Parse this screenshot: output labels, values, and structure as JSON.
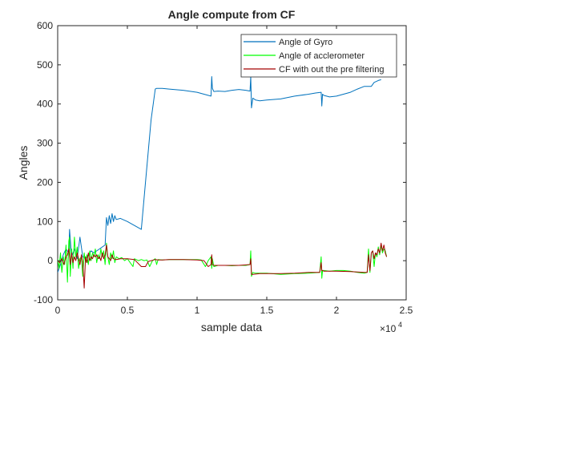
{
  "chart_data": {
    "type": "line",
    "title": "Angle compute from CF",
    "xlabel": "sample data",
    "ylabel": "Angles",
    "x_exponent_label": "×10",
    "x_exponent_power": "4",
    "xlim": [
      0,
      25000
    ],
    "ylim": [
      -100,
      600
    ],
    "x_ticks": [
      0,
      5000,
      10000,
      15000,
      20000,
      25000
    ],
    "x_tick_labels": [
      "0",
      "0.5",
      "1",
      "1.5",
      "2",
      "2.5"
    ],
    "y_ticks": [
      -100,
      0,
      100,
      200,
      300,
      400,
      500,
      600
    ],
    "y_tick_labels": [
      "-100",
      "0",
      "100",
      "200",
      "300",
      "400",
      "500",
      "600"
    ],
    "grid": false,
    "legend_position": "top-right",
    "series": [
      {
        "name": "Angle of Gyro",
        "color": "#0072bd",
        "x": [
          0,
          200,
          400,
          600,
          800,
          850,
          1000,
          1200,
          1400,
          1600,
          1800,
          2000,
          2200,
          2400,
          2600,
          2800,
          3000,
          3200,
          3400,
          3500,
          3600,
          3700,
          3800,
          3900,
          4000,
          4100,
          4200,
          4500,
          5000,
          5500,
          6000,
          6300,
          6700,
          7000,
          7100,
          7500,
          8000,
          9000,
          10000,
          10500,
          11000,
          11050,
          11100,
          11200,
          11500,
          12000,
          12500,
          13000,
          13500,
          13800,
          13850,
          13900,
          14000,
          14200,
          14500,
          15000,
          16000,
          17000,
          18000,
          18500,
          18900,
          18950,
          19000,
          19100,
          19500,
          20000,
          21000,
          21500,
          22000,
          22500,
          22700,
          23000,
          23200
        ],
        "y": [
          -30,
          -10,
          15,
          30,
          20,
          80,
          10,
          30,
          5,
          60,
          10,
          5,
          15,
          25,
          20,
          25,
          30,
          35,
          40,
          110,
          90,
          115,
          95,
          120,
          100,
          115,
          105,
          108,
          100,
          90,
          80,
          200,
          360,
          438,
          440,
          440,
          438,
          435,
          430,
          425,
          420,
          470,
          440,
          432,
          433,
          432,
          435,
          437,
          435,
          433,
          470,
          390,
          415,
          410,
          408,
          410,
          413,
          420,
          425,
          428,
          430,
          395,
          425,
          422,
          418,
          420,
          430,
          438,
          445,
          445,
          455,
          460,
          462
        ]
      },
      {
        "name": "Angle of acclerometer",
        "color": "#00ff00",
        "x": [
          0,
          100,
          200,
          300,
          400,
          500,
          600,
          700,
          800,
          850,
          900,
          1000,
          1100,
          1200,
          1300,
          1400,
          1500,
          1600,
          1700,
          1800,
          1900,
          2000,
          2100,
          2200,
          2300,
          2400,
          2500,
          2600,
          2700,
          2800,
          2900,
          3000,
          3100,
          3200,
          3300,
          3400,
          3500,
          3600,
          3700,
          3800,
          3900,
          4000,
          4100,
          4200,
          4400,
          4600,
          4800,
          5000,
          5400,
          5500,
          5800,
          6000,
          6200,
          6400,
          6600,
          6800,
          7000,
          7100,
          7200,
          7500,
          8000,
          9000,
          10000,
          10300,
          10600,
          10800,
          11000,
          11050,
          11100,
          11200,
          11500,
          12000,
          12500,
          13000,
          13500,
          13800,
          13850,
          13900,
          14000,
          14200,
          15000,
          16000,
          17000,
          18000,
          18800,
          18900,
          18950,
          19000,
          19100,
          19500,
          20000,
          20500,
          21000,
          21500,
          22000,
          22200,
          22300,
          22400,
          22500,
          22600,
          22700,
          22800,
          22900,
          23000,
          23100,
          23200,
          23300,
          23400,
          23500,
          23600
        ],
        "y": [
          5,
          -20,
          20,
          -30,
          10,
          -10,
          40,
          -55,
          50,
          60,
          -40,
          30,
          -20,
          60,
          10,
          35,
          -20,
          5,
          10,
          -40,
          20,
          -5,
          15,
          -10,
          25,
          0,
          20,
          10,
          30,
          -5,
          15,
          5,
          30,
          10,
          25,
          -10,
          45,
          10,
          -10,
          20,
          5,
          25,
          -5,
          10,
          5,
          8,
          0,
          5,
          -15,
          5,
          0,
          3,
          0,
          2,
          -15,
          0,
          5,
          -10,
          3,
          2,
          3,
          3,
          3,
          2,
          -15,
          0,
          10,
          -20,
          5,
          -15,
          -12,
          -12,
          -13,
          -12,
          -12,
          -10,
          25,
          -40,
          -30,
          -32,
          -32,
          -35,
          -33,
          -32,
          -30,
          10,
          -45,
          -25,
          -25,
          -27,
          -25,
          -25,
          -27,
          -30,
          -32,
          -30,
          30,
          -30,
          20,
          25,
          -15,
          20,
          10,
          35,
          15,
          40,
          20,
          30,
          25,
          10
        ]
      },
      {
        "name": "CF with out the pre filtering",
        "color": "#ff0000",
        "line_color": "#a50000",
        "x": [
          0,
          150,
          300,
          450,
          600,
          700,
          800,
          900,
          1000,
          1100,
          1200,
          1300,
          1400,
          1500,
          1600,
          1700,
          1800,
          1900,
          2000,
          2100,
          2200,
          2300,
          2400,
          2500,
          2600,
          2700,
          2800,
          2900,
          3000,
          3100,
          3200,
          3300,
          3400,
          3500,
          3600,
          3700,
          3800,
          3900,
          4000,
          4200,
          4500,
          5000,
          5500,
          6000,
          6300,
          6500,
          7000,
          7200,
          7500,
          8000,
          9000,
          10000,
          10500,
          10800,
          11000,
          11050,
          11100,
          11200,
          11500,
          12000,
          13000,
          13800,
          13850,
          13900,
          14000,
          14500,
          15000,
          16000,
          17000,
          18000,
          18800,
          18900,
          18950,
          19000,
          19100,
          19500,
          20000,
          21000,
          22000,
          22200,
          22300,
          22400,
          22500,
          22600,
          22700,
          22800,
          22900,
          23000,
          23100,
          23200,
          23300,
          23400,
          23500,
          23600
        ],
        "y": [
          0,
          -5,
          5,
          -10,
          10,
          15,
          30,
          -10,
          20,
          -5,
          10,
          0,
          20,
          5,
          -10,
          15,
          -5,
          -70,
          10,
          -5,
          20,
          0,
          10,
          5,
          15,
          10,
          15,
          5,
          10,
          0,
          20,
          5,
          15,
          40,
          10,
          5,
          0,
          15,
          5,
          3,
          5,
          5,
          3,
          -15,
          -15,
          -2,
          3,
          2,
          2,
          3,
          3,
          2,
          0,
          -15,
          -10,
          15,
          -10,
          -12,
          -12,
          -12,
          -12,
          -10,
          5,
          -35,
          -35,
          -33,
          -33,
          -33,
          -32,
          -30,
          -30,
          -5,
          -25,
          -25,
          -27,
          -27,
          -27,
          -28,
          -30,
          -30,
          15,
          -25,
          20,
          25,
          5,
          20,
          15,
          30,
          20,
          45,
          25,
          40,
          20,
          10
        ]
      }
    ]
  }
}
